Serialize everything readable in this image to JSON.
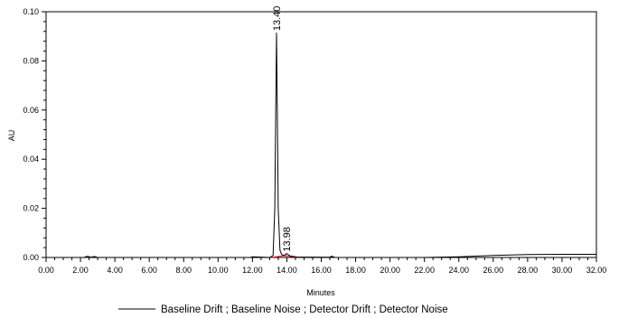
{
  "chart_data": {
    "type": "line",
    "title": "",
    "xlabel": "Minutes",
    "ylabel": "AU",
    "xlim": [
      0,
      32
    ],
    "ylim": [
      0,
      0.1
    ],
    "x_ticks": [
      "0.00",
      "2.00",
      "4.00",
      "6.00",
      "8.00",
      "10.00",
      "12.00",
      "14.00",
      "16.00",
      "18.00",
      "20.00",
      "22.00",
      "24.00",
      "26.00",
      "28.00",
      "30.00",
      "32.00"
    ],
    "y_ticks": [
      "0.00",
      "0.02",
      "0.04",
      "0.06",
      "0.08",
      "0.10"
    ],
    "x_tick_values": [
      0,
      2,
      4,
      6,
      8,
      10,
      12,
      14,
      16,
      18,
      20,
      22,
      24,
      26,
      28,
      30,
      32
    ],
    "y_tick_values": [
      0,
      0.02,
      0.04,
      0.06,
      0.08,
      0.1
    ],
    "grid": false,
    "legend": "bottom",
    "series": [
      {
        "name": "Baseline Drift ; Baseline Noise ; Detector Drift ; Detector Noise",
        "color": "#000000",
        "x": [
          0,
          2.2,
          2.4,
          2.6,
          2.8,
          3.0,
          11.9,
          12.0,
          13.0,
          13.2,
          13.3,
          13.37,
          13.4,
          13.43,
          13.5,
          13.6,
          13.7,
          13.85,
          13.98,
          14.2,
          14.6,
          16.5,
          16.6,
          16.8,
          20.0,
          22.0,
          24.0,
          26.0,
          28.0,
          30.0,
          32.0
        ],
        "y": [
          0.0,
          0.0,
          0.0005,
          0.0001,
          0.0004,
          0.0,
          0.0,
          0.0003,
          0.0,
          0.0008,
          0.02,
          0.07,
          0.0915,
          0.07,
          0.02,
          0.003,
          0.0012,
          0.0008,
          0.0016,
          0.0006,
          0.0002,
          0.0001,
          0.0005,
          0.0,
          0.0,
          0.0,
          0.0003,
          0.0008,
          0.0012,
          0.0013,
          0.0013
        ]
      }
    ],
    "integration_baseline": {
      "color": "#ff0000",
      "x": [
        13.05,
        13.4,
        13.7,
        13.98,
        14.6
      ],
      "y": [
        0.0,
        0.0003,
        0.0006,
        0.0007,
        0.0
      ]
    },
    "peaks": [
      {
        "label": "13.40",
        "x": 13.4,
        "y": 0.0915
      },
      {
        "label": "13.98",
        "x": 13.98,
        "y": 0.0016
      }
    ]
  }
}
